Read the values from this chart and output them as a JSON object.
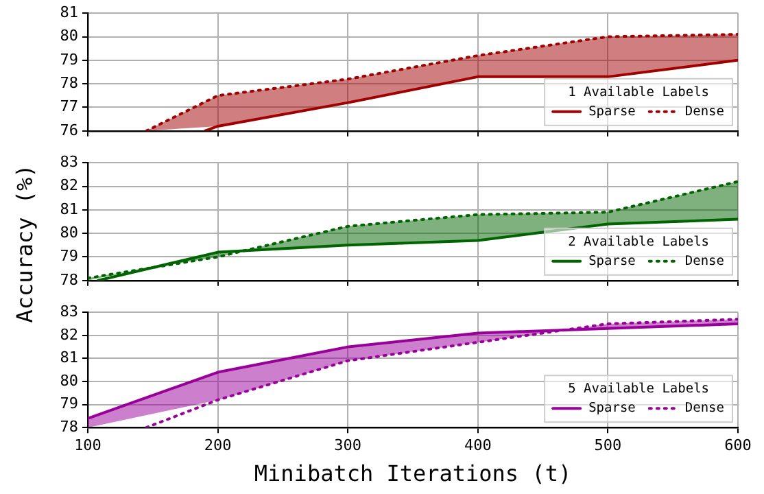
{
  "chart_data": [
    {
      "type": "line",
      "xlim": [
        100,
        600
      ],
      "xticks": [
        100,
        200,
        300,
        400,
        500,
        600
      ],
      "ylim": [
        76,
        81
      ],
      "yticks": [
        76,
        77,
        78,
        79,
        80,
        81
      ],
      "grid": true,
      "tick_labels": "y",
      "legend": "bottom right",
      "legend_title": "1 Available Labels",
      "series": [
        {
          "name": "Sparse",
          "color": "#a00000",
          "line_style": "solid",
          "x": [
            190,
            200,
            300,
            400,
            500,
            600
          ],
          "values": [
            76,
            76.2,
            77.2,
            78.3,
            78.3,
            79.0
          ]
        },
        {
          "name": "Dense",
          "color": "#a00000",
          "line_style": "dotted",
          "x": [
            145,
            200,
            300,
            400,
            500,
            600
          ],
          "values": [
            76,
            77.5,
            78.2,
            79.2,
            80.0,
            80.1
          ],
          "lower": [
            76,
            76.2,
            77.2,
            78.3,
            78.3,
            79.0
          ],
          "upper": [
            76,
            77.5,
            78.2,
            79.2,
            80.0,
            80.1
          ]
        }
      ]
    },
    {
      "type": "line",
      "x": [
        100,
        200,
        300,
        400,
        500,
        600
      ],
      "xlim": [
        100,
        600
      ],
      "xticks": [
        100,
        200,
        300,
        400,
        500,
        600
      ],
      "ylim": [
        78,
        83
      ],
      "yticks": [
        78,
        79,
        80,
        81,
        82,
        83
      ],
      "grid": true,
      "tick_labels": "y",
      "legend": "bottom right",
      "legend_title": "2 Available Labels",
      "ylabel": "Accuracy (%)",
      "series": [
        {
          "name": "Sparse",
          "color": "#006400",
          "line_style": "solid",
          "x": [
            108,
            200,
            300,
            400,
            500,
            600
          ],
          "values": [
            78,
            79.2,
            79.5,
            79.7,
            80.4,
            80.6
          ]
        },
        {
          "name": "Dense",
          "color": "#006400",
          "line_style": "dotted",
          "values": [
            78.1,
            79.0,
            80.3,
            80.8,
            80.9,
            82.2
          ],
          "lower": [
            78,
            79.2,
            79.5,
            79.7,
            80.4,
            80.6
          ],
          "upper": [
            78.1,
            79.0,
            80.3,
            80.8,
            80.9,
            82.2
          ]
        }
      ]
    },
    {
      "type": "line",
      "x": [
        100,
        200,
        300,
        400,
        500,
        600
      ],
      "xlim": [
        100,
        600
      ],
      "xticks": [
        100,
        200,
        300,
        400,
        500,
        600
      ],
      "ylim": [
        78,
        83
      ],
      "yticks": [
        78,
        79,
        80,
        81,
        82,
        83
      ],
      "grid": true,
      "legend": "bottom right",
      "legend_title": "5 Available Labels",
      "xlabel": "Minibatch Iterations (t)",
      "series": [
        {
          "name": "Sparse",
          "color": "#990099",
          "line_style": "solid",
          "values": [
            78.4,
            80.4,
            81.5,
            82.1,
            82.3,
            82.5
          ],
          "lower": [
            78,
            79.2,
            80.9,
            81.7,
            82.5,
            82.7
          ],
          "upper": [
            78.4,
            80.4,
            81.5,
            82.1,
            82.3,
            82.5
          ]
        },
        {
          "name": "Dense",
          "color": "#990099",
          "line_style": "dotted",
          "x": [
            145,
            200,
            300,
            400,
            500,
            600
          ],
          "values": [
            78,
            79.2,
            80.9,
            81.7,
            82.5,
            82.7
          ]
        }
      ]
    }
  ]
}
